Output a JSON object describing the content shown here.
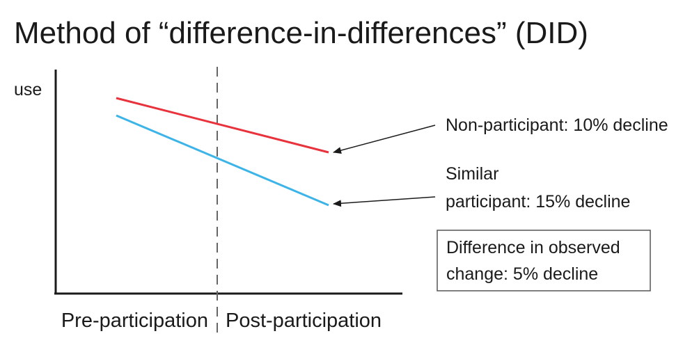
{
  "title": "Method of “difference-in-differences” (DID)",
  "y_axis_label": "use",
  "x_phases": {
    "pre": "Pre-participation",
    "post": "Post-participation"
  },
  "series": {
    "non_participant": {
      "label": "Non-participant: 10% decline",
      "color": "#e8323c"
    },
    "participant": {
      "label_line1": "Similar",
      "label_line2": "participant: 15% decline",
      "color": "#3db4e8"
    }
  },
  "difference_box": {
    "line1": "Difference in observed",
    "line2": "change: 5% decline"
  }
}
